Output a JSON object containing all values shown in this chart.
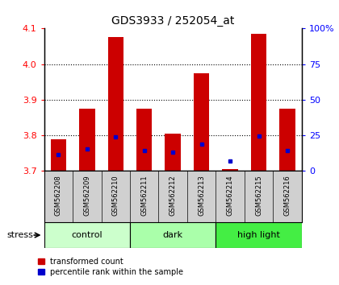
{
  "title": "GDS3933 / 252054_at",
  "samples": [
    "GSM562208",
    "GSM562209",
    "GSM562210",
    "GSM562211",
    "GSM562212",
    "GSM562213",
    "GSM562214",
    "GSM562215",
    "GSM562216"
  ],
  "bar_tops": [
    3.79,
    3.875,
    4.075,
    3.875,
    3.805,
    3.975,
    3.705,
    4.085,
    3.875
  ],
  "bar_bottom": 3.7,
  "percentile_values": [
    3.745,
    3.762,
    3.795,
    3.757,
    3.752,
    3.776,
    3.728,
    3.797,
    3.758
  ],
  "groups": [
    {
      "label": "control",
      "start": 0,
      "end": 3,
      "color": "#ccffcc"
    },
    {
      "label": "dark",
      "start": 3,
      "end": 6,
      "color": "#aaffaa"
    },
    {
      "label": "high light",
      "start": 6,
      "end": 9,
      "color": "#44ee44"
    }
  ],
  "ylim": [
    3.7,
    4.1
  ],
  "yticks_left": [
    3.7,
    3.8,
    3.9,
    4.0,
    4.1
  ],
  "yticks_right": [
    0,
    25,
    50,
    75,
    100
  ],
  "bar_color": "#cc0000",
  "percentile_color": "#0000cc",
  "bar_width": 0.55,
  "stress_label": "stress",
  "background_plot": "#ffffff",
  "background_labels": "#d0d0d0",
  "fig_bg": "#ffffff"
}
